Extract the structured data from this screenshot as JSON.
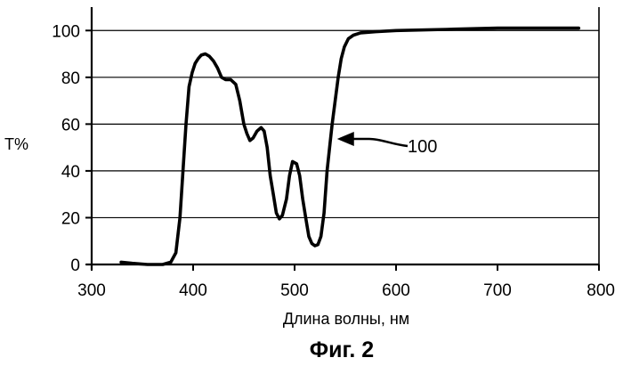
{
  "figure_caption": "Фиг. 2",
  "chart_data": {
    "type": "line",
    "title": "",
    "xlabel": "Длина волны, нм",
    "ylabel": "T%",
    "xlim": [
      300,
      800
    ],
    "ylim": [
      0,
      110
    ],
    "x_ticks": [
      300,
      400,
      500,
      600,
      700,
      800
    ],
    "y_ticks": [
      0,
      20,
      40,
      60,
      80,
      100
    ],
    "grid": "horizontal",
    "legend": "none",
    "annotation": "100",
    "series": [
      {
        "color": "#000000",
        "x": [
          329,
          340,
          355,
          370,
          378,
          383,
          387,
          390,
          393,
          396,
          399,
          402,
          405,
          408,
          412,
          416,
          420,
          424,
          428,
          432,
          437,
          442,
          446,
          450,
          453,
          456,
          459,
          463,
          467,
          470,
          473,
          476,
          479,
          482,
          485,
          488,
          492,
          495,
          498,
          502,
          505,
          508,
          511,
          514,
          517,
          520,
          523,
          526,
          529,
          532,
          535,
          537,
          540,
          543,
          546,
          549,
          553,
          558,
          565,
          580,
          600,
          650,
          700,
          780
        ],
        "y": [
          1,
          0.5,
          0,
          0,
          1,
          5,
          20,
          40,
          60,
          76,
          82,
          86,
          88,
          89.5,
          90,
          89,
          87,
          84,
          80,
          79,
          79,
          77,
          70,
          60,
          56,
          53,
          54,
          57,
          58.5,
          57,
          50,
          38,
          30,
          22,
          19.5,
          21,
          28,
          38,
          44,
          43,
          38,
          28,
          20,
          12,
          9,
          8,
          8.5,
          12,
          22,
          40,
          52,
          60,
          70,
          80,
          88,
          93,
          96.5,
          98,
          99,
          99.5,
          100,
          100.5,
          101,
          101
        ]
      }
    ]
  }
}
